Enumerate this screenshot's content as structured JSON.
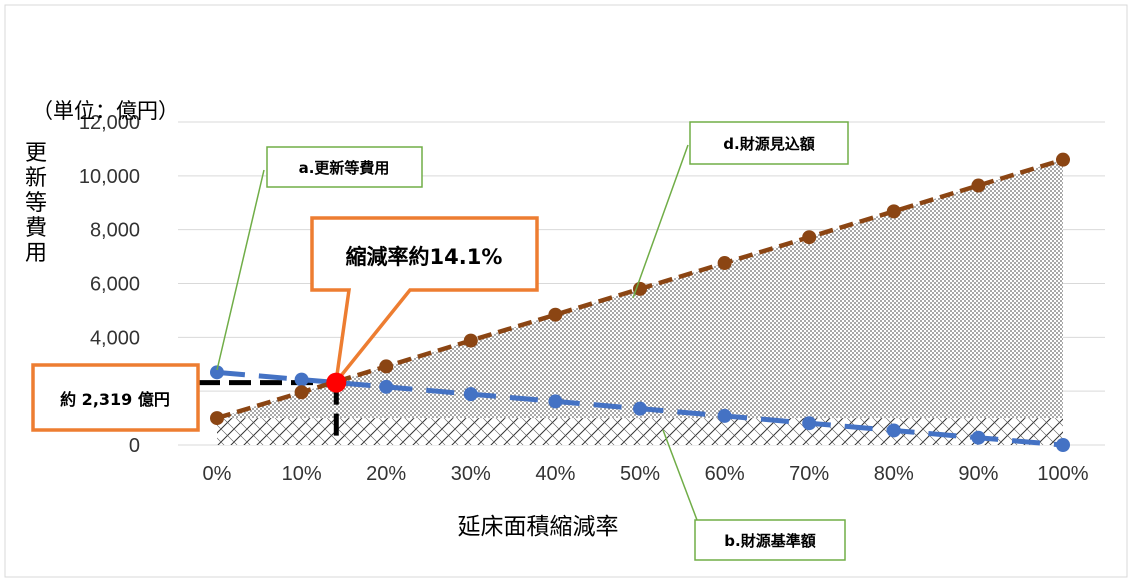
{
  "chart_data": {
    "type": "line",
    "unit_label": "（単位：億円）",
    "ylabel": "更新等費用",
    "xlabel": "延床面積縮減率",
    "x": [
      0,
      10,
      20,
      30,
      40,
      50,
      60,
      70,
      80,
      90,
      100
    ],
    "x_tick_labels": [
      "0%",
      "10%",
      "20%",
      "30%",
      "40%",
      "50%",
      "60%",
      "70%",
      "80%",
      "90%",
      "100%"
    ],
    "y_tick_labels": [
      "0",
      "2,000",
      "4,000",
      "6,000",
      "8,000",
      "10,000",
      "12,000"
    ],
    "ylim": [
      0,
      12000
    ],
    "xlim": [
      0,
      100
    ],
    "grid": true,
    "series": [
      {
        "name": "a.更新等費用",
        "color": "#4472c4",
        "dash": "long-dash",
        "values": [
          2700,
          2430,
          2160,
          1890,
          1620,
          1350,
          1080,
          810,
          540,
          270,
          0
        ]
      },
      {
        "name": "d.財源見込額",
        "color": "#8b4513",
        "dash": "short-dash",
        "values": [
          1000,
          1960,
          2920,
          3880,
          4840,
          5800,
          6760,
          7720,
          8680,
          9640,
          10600
        ]
      }
    ],
    "base_amount": {
      "name": "b.財源基準額",
      "value": 1000
    },
    "intersection": {
      "x": 14.1,
      "y": 2319,
      "color": "#ff0000"
    },
    "annotations": {
      "reduction_rate": "縮減率約14.1%",
      "cost_value": "約 2,319 億円"
    }
  }
}
